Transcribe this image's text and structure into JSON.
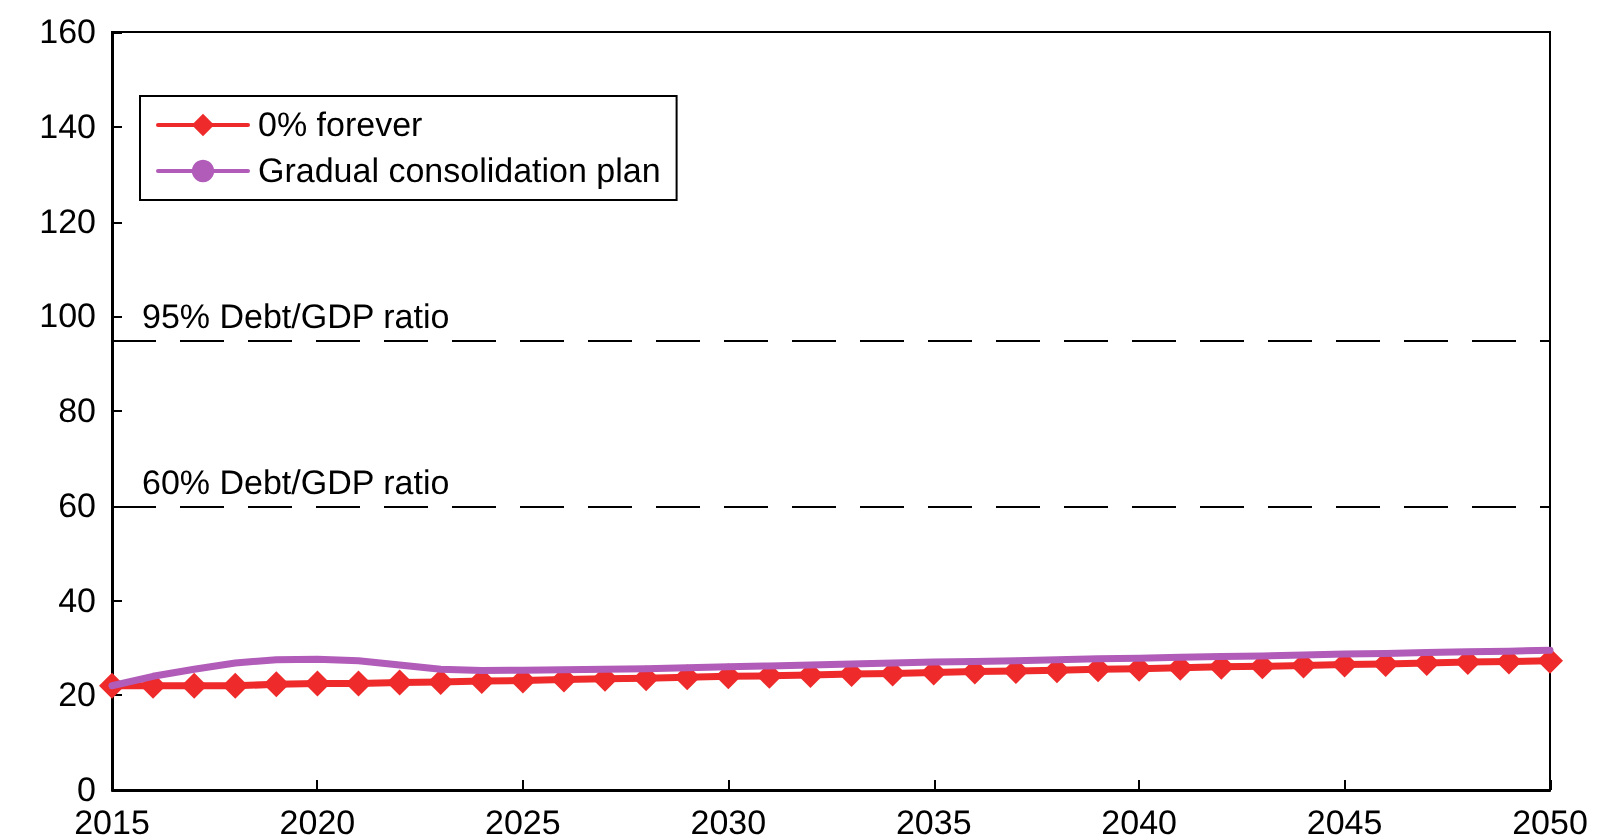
{
  "chart_data": {
    "type": "line",
    "x": [
      2015,
      2016,
      2017,
      2018,
      2019,
      2020,
      2021,
      2022,
      2023,
      2024,
      2025,
      2026,
      2027,
      2028,
      2029,
      2030,
      2031,
      2032,
      2033,
      2034,
      2035,
      2036,
      2037,
      2038,
      2039,
      2040,
      2041,
      2042,
      2043,
      2044,
      2045,
      2046,
      2047,
      2048,
      2049,
      2050
    ],
    "series": [
      {
        "name": "0% forever",
        "color": "#ee2a2a",
        "marker": "diamond",
        "values": [
          22,
          22,
          22,
          22,
          22.3,
          22.5,
          22.5,
          22.7,
          22.8,
          23,
          23.1,
          23.3,
          23.5,
          23.6,
          23.8,
          24,
          24.1,
          24.3,
          24.5,
          24.6,
          24.8,
          25,
          25.1,
          25.3,
          25.5,
          25.6,
          25.8,
          26,
          26.1,
          26.3,
          26.5,
          26.6,
          26.8,
          27,
          27.1,
          27.3
        ]
      },
      {
        "name": "Gradual consolidation plan",
        "color": "#b05cb8",
        "marker": "none",
        "values": [
          22,
          24,
          25.5,
          26.8,
          27.5,
          27.6,
          27.3,
          26.4,
          25.5,
          25.2,
          25.3,
          25.4,
          25.5,
          25.6,
          25.8,
          26,
          26.2,
          26.4,
          26.6,
          26.8,
          27,
          27.1,
          27.3,
          27.5,
          27.7,
          27.8,
          28,
          28.2,
          28.3,
          28.5,
          28.7,
          28.8,
          29,
          29.2,
          29.3,
          29.5
        ]
      }
    ],
    "xlim": [
      2015,
      2050
    ],
    "xticks": [
      2015,
      2020,
      2025,
      2030,
      2035,
      2040,
      2045,
      2050
    ],
    "ylim": [
      0,
      160
    ],
    "yticks": [
      0,
      20,
      40,
      60,
      80,
      100,
      120,
      140,
      160
    ],
    "ref_lines": [
      {
        "axis": "y",
        "value": 95,
        "label": "95% Debt/GDP ratio",
        "color": "#000000",
        "line_style": "dashed"
      },
      {
        "axis": "y",
        "value": 60,
        "label": "60% Debt/GDP ratio",
        "color": "#000000",
        "line_style": "dashed"
      }
    ],
    "legend": "top left",
    "grid": false,
    "line_style": "solid"
  }
}
